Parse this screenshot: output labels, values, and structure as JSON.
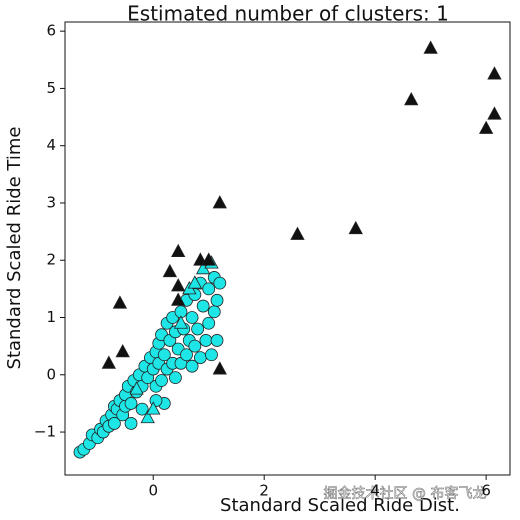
{
  "chart_data": {
    "type": "scatter",
    "title": "Estimated number of clusters: 1",
    "x_label": "Standard Scaled Ride Dist.",
    "y_label": "Standard Scaled Ride Time",
    "watermark": "掘金技术社区 @ 布客飞龙",
    "xlim": [
      -1.59,
      6.43
    ],
    "ylim": [
      -1.75,
      6.16
    ],
    "xticks": [
      0,
      2,
      4,
      6
    ],
    "yticks": [
      {
        "value": -1,
        "label": "−1"
      },
      0,
      1,
      2,
      3,
      4,
      5,
      6
    ],
    "grid": false,
    "series": [
      {
        "color": "#1ee6e6",
        "marker": "circle",
        "x": [
          -1.32,
          -1.25,
          -1.15,
          -1.1,
          -1.0,
          -0.95,
          -0.9,
          -0.85,
          -0.8,
          -0.75,
          -0.7,
          -0.7,
          -0.65,
          -0.6,
          -0.55,
          -0.5,
          -0.5,
          -0.45,
          -0.4,
          -0.35,
          -0.3,
          -0.25,
          -0.2,
          -0.15,
          -0.1,
          -0.05,
          0.0,
          0.05,
          0.05,
          0.1,
          0.1,
          0.15,
          0.15,
          0.2,
          0.25,
          0.25,
          0.3,
          0.35,
          0.35,
          0.4,
          0.4,
          0.45,
          0.5,
          0.5,
          0.55,
          0.6,
          0.6,
          0.65,
          0.7,
          0.7,
          0.75,
          0.75,
          0.8,
          0.85,
          0.85,
          0.9,
          0.95,
          1.0,
          1.0,
          1.05,
          1.1,
          1.1,
          1.15,
          1.2,
          1.15,
          0.2,
          0.05,
          -0.2,
          -0.4
        ],
        "values": [
          -1.35,
          -1.3,
          -1.2,
          -1.05,
          -1.1,
          -0.95,
          -1.0,
          -0.8,
          -0.9,
          -0.7,
          -0.55,
          -0.85,
          -0.6,
          -0.45,
          -0.7,
          -0.35,
          -0.55,
          -0.2,
          -0.5,
          -0.1,
          -0.3,
          0.0,
          -0.2,
          0.15,
          -0.05,
          0.3,
          0.1,
          0.4,
          -0.2,
          0.55,
          0.2,
          0.7,
          -0.1,
          0.35,
          0.9,
          0.1,
          0.6,
          1.0,
          0.2,
          0.75,
          -0.05,
          0.45,
          1.1,
          0.2,
          0.8,
          1.3,
          0.35,
          0.6,
          1.0,
          0.15,
          1.4,
          0.5,
          0.8,
          1.6,
          0.3,
          1.2,
          0.6,
          1.5,
          0.9,
          0.35,
          1.7,
          1.1,
          1.3,
          1.6,
          0.6,
          -0.5,
          -0.45,
          -0.6,
          -0.85
        ]
      },
      {
        "color": "#1ee6e6",
        "marker": "triangle",
        "x": [
          0.65,
          0.75,
          0.9,
          1.05,
          -0.1,
          0.0,
          -0.3,
          0.5
        ],
        "values": [
          1.5,
          1.6,
          1.85,
          1.95,
          -0.75,
          -0.6,
          -0.25,
          0.9
        ]
      },
      {
        "color": "#111111",
        "marker": "triangle",
        "x": [
          -0.6,
          -0.8,
          -0.55,
          0.3,
          0.45,
          0.45,
          0.45,
          0.85,
          1.0,
          1.2,
          1.2,
          2.6,
          3.65,
          4.65,
          5.0,
          6.0,
          6.15,
          6.15
        ],
        "values": [
          1.25,
          0.2,
          0.4,
          1.8,
          2.15,
          1.55,
          1.3,
          2.0,
          2.0,
          3.0,
          0.1,
          2.45,
          2.55,
          4.8,
          5.7,
          4.3,
          5.25,
          4.55
        ]
      }
    ]
  }
}
